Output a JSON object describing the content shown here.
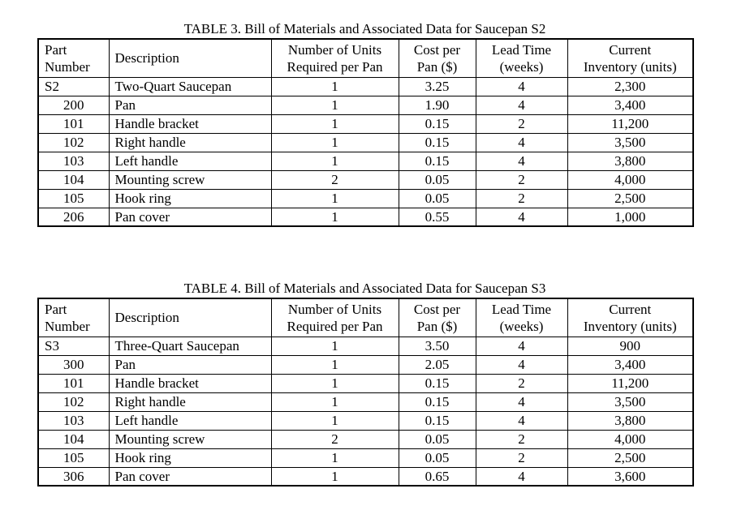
{
  "page": {
    "background": "#ffffff",
    "text_color": "#000000",
    "border_color": "#000000"
  },
  "tables": [
    {
      "title": "TABLE 3. Bill of Materials and Associated Data for Saucepan S2",
      "headers": [
        {
          "name": "part-number",
          "lines": [
            "Part",
            "Number"
          ],
          "align": "left"
        },
        {
          "name": "description",
          "lines": [
            "Description"
          ],
          "align": "left"
        },
        {
          "name": "units-required-per-pan",
          "lines": [
            "Number of Units",
            "Required per Pan"
          ],
          "align": "center"
        },
        {
          "name": "cost-per-pan",
          "lines": [
            "Cost per",
            "Pan ($)"
          ],
          "align": "center"
        },
        {
          "name": "lead-time",
          "lines": [
            "Lead Time",
            "(weeks)"
          ],
          "align": "center"
        },
        {
          "name": "current-inventory",
          "lines": [
            "Current",
            "Inventory (units)"
          ],
          "align": "center"
        }
      ],
      "rows": [
        {
          "part_number": "S2",
          "part_align": "left",
          "description": "Two-Quart Saucepan",
          "units_required_per_pan": "1",
          "cost_per_pan": "3.25",
          "lead_time_weeks": "4",
          "current_inventory": "2,300"
        },
        {
          "part_number": "200",
          "part_align": "center",
          "description": "Pan",
          "units_required_per_pan": "1",
          "cost_per_pan": "1.90",
          "lead_time_weeks": "4",
          "current_inventory": "3,400"
        },
        {
          "part_number": "101",
          "part_align": "center",
          "description": "Handle bracket",
          "units_required_per_pan": "1",
          "cost_per_pan": "0.15",
          "lead_time_weeks": "2",
          "current_inventory": "11,200"
        },
        {
          "part_number": "102",
          "part_align": "center",
          "description": "Right handle",
          "units_required_per_pan": "1",
          "cost_per_pan": "0.15",
          "lead_time_weeks": "4",
          "current_inventory": "3,500"
        },
        {
          "part_number": "103",
          "part_align": "center",
          "description": "Left handle",
          "units_required_per_pan": "1",
          "cost_per_pan": "0.15",
          "lead_time_weeks": "4",
          "current_inventory": "3,800"
        },
        {
          "part_number": "104",
          "part_align": "center",
          "description": "Mounting screw",
          "units_required_per_pan": "2",
          "cost_per_pan": "0.05",
          "lead_time_weeks": "2",
          "current_inventory": "4,000"
        },
        {
          "part_number": "105",
          "part_align": "center",
          "description": "Hook ring",
          "units_required_per_pan": "1",
          "cost_per_pan": "0.05",
          "lead_time_weeks": "2",
          "current_inventory": "2,500"
        },
        {
          "part_number": "206",
          "part_align": "center",
          "description": "Pan cover",
          "units_required_per_pan": "1",
          "cost_per_pan": "0.55",
          "lead_time_weeks": "4",
          "current_inventory": "1,000"
        }
      ]
    },
    {
      "title": "TABLE 4. Bill of Materials and Associated Data for Saucepan S3",
      "headers": [
        {
          "name": "part-number",
          "lines": [
            "Part",
            "Number"
          ],
          "align": "left"
        },
        {
          "name": "description",
          "lines": [
            "Description"
          ],
          "align": "left"
        },
        {
          "name": "units-required-per-pan",
          "lines": [
            "Number of Units",
            "Required per Pan"
          ],
          "align": "center"
        },
        {
          "name": "cost-per-pan",
          "lines": [
            "Cost per",
            "Pan ($)"
          ],
          "align": "center"
        },
        {
          "name": "lead-time",
          "lines": [
            "Lead Time",
            "(weeks)"
          ],
          "align": "center"
        },
        {
          "name": "current-inventory",
          "lines": [
            "Current",
            "Inventory (units)"
          ],
          "align": "center"
        }
      ],
      "rows": [
        {
          "part_number": "S3",
          "part_align": "left",
          "description": "Three-Quart Saucepan",
          "units_required_per_pan": "1",
          "cost_per_pan": "3.50",
          "lead_time_weeks": "4",
          "current_inventory": "900"
        },
        {
          "part_number": "300",
          "part_align": "center",
          "description": "Pan",
          "units_required_per_pan": "1",
          "cost_per_pan": "2.05",
          "lead_time_weeks": "4",
          "current_inventory": "3,400"
        },
        {
          "part_number": "101",
          "part_align": "center",
          "description": "Handle bracket",
          "units_required_per_pan": "1",
          "cost_per_pan": "0.15",
          "lead_time_weeks": "2",
          "current_inventory": "11,200"
        },
        {
          "part_number": "102",
          "part_align": "center",
          "description": "Right handle",
          "units_required_per_pan": "1",
          "cost_per_pan": "0.15",
          "lead_time_weeks": "4",
          "current_inventory": "3,500"
        },
        {
          "part_number": "103",
          "part_align": "center",
          "description": "Left handle",
          "units_required_per_pan": "1",
          "cost_per_pan": "0.15",
          "lead_time_weeks": "4",
          "current_inventory": "3,800"
        },
        {
          "part_number": "104",
          "part_align": "center",
          "description": "Mounting screw",
          "units_required_per_pan": "2",
          "cost_per_pan": "0.05",
          "lead_time_weeks": "2",
          "current_inventory": "4,000"
        },
        {
          "part_number": "105",
          "part_align": "center",
          "description": "Hook ring",
          "units_required_per_pan": "1",
          "cost_per_pan": "0.05",
          "lead_time_weeks": "2",
          "current_inventory": "2,500"
        },
        {
          "part_number": "306",
          "part_align": "center",
          "description": "Pan cover",
          "units_required_per_pan": "1",
          "cost_per_pan": "0.65",
          "lead_time_weeks": "4",
          "current_inventory": "3,600"
        }
      ]
    }
  ]
}
